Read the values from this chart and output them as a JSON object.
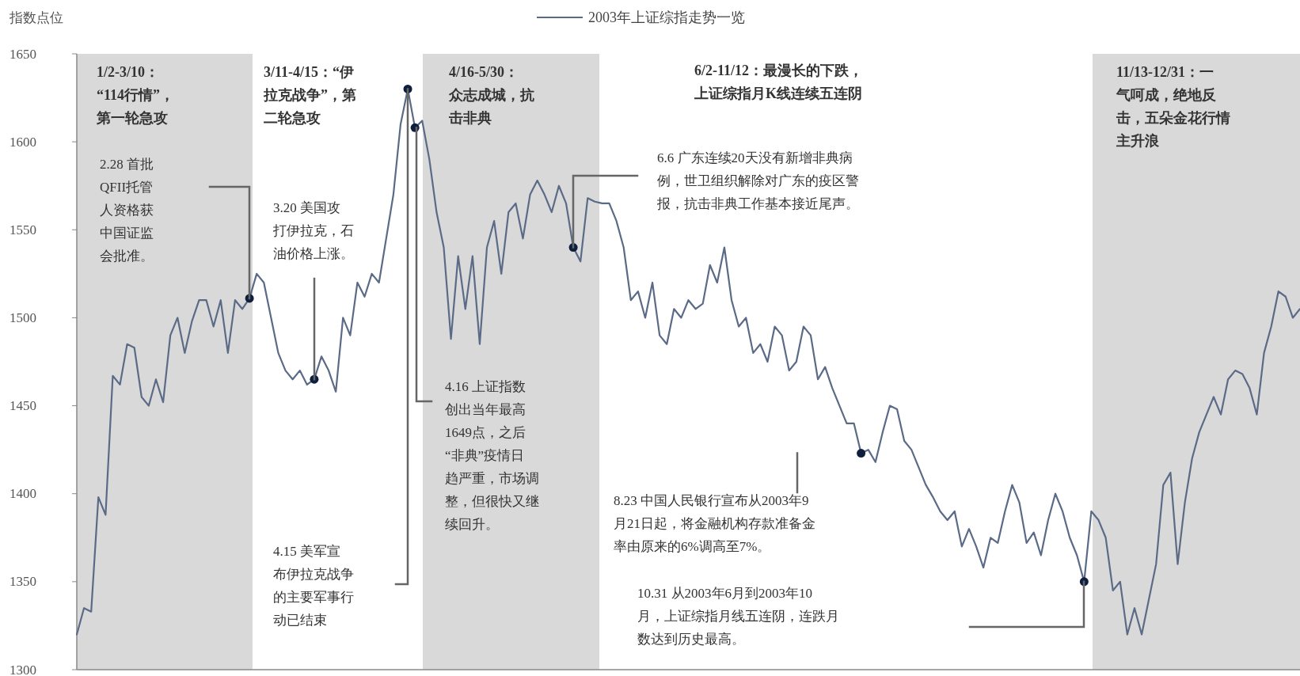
{
  "chart_data": {
    "type": "line",
    "ylabel": "指数点位",
    "legend": "top",
    "tick_labels": "y",
    "grid": false,
    "marker": "none",
    "line_style": "solid",
    "ylim": [
      1300,
      1650
    ],
    "yticks": [
      1300,
      1350,
      1400,
      1450,
      1500,
      1550,
      1600,
      1650
    ],
    "categories": [
      null,
      null,
      null,
      null,
      null,
      null,
      null,
      null,
      null,
      null,
      null,
      null,
      null,
      null,
      null,
      null,
      null,
      null,
      null,
      null,
      null,
      null,
      null,
      null,
      null,
      null,
      null,
      null,
      null,
      null,
      null,
      null,
      null,
      null,
      null,
      null,
      null,
      null,
      null,
      null,
      null,
      null,
      null,
      null,
      null,
      null,
      null,
      null,
      null,
      null,
      null,
      null,
      null,
      null,
      null,
      null,
      null,
      null,
      null,
      null,
      null,
      null,
      null,
      null,
      null,
      null,
      null,
      null,
      null,
      null,
      null,
      null,
      null,
      null,
      null,
      null,
      null,
      null,
      null,
      null,
      null,
      null,
      null,
      null,
      null,
      null,
      null,
      null,
      null,
      null,
      null,
      null,
      null,
      null,
      null,
      null,
      null,
      null,
      null,
      null,
      null,
      null,
      null,
      null,
      null,
      null,
      null,
      null,
      null,
      null,
      null,
      null,
      null,
      null,
      null,
      null,
      null,
      null,
      null,
      null,
      null,
      null,
      null,
      null,
      null,
      null,
      null,
      null,
      null,
      null,
      null,
      null,
      null,
      null,
      null,
      null,
      null,
      null,
      null,
      null,
      null,
      null,
      null,
      null,
      null,
      null,
      null,
      null,
      null,
      null,
      null,
      null,
      null,
      null,
      null,
      null,
      null,
      null,
      null,
      null,
      null,
      null,
      null,
      null,
      null,
      null,
      null,
      null,
      null,
      null,
      null
    ],
    "series": [
      {
        "name": "2003年上证综指走势一览",
        "color": "#5b6b87",
        "values": [
          1320,
          1335,
          1333,
          1398,
          1388,
          1467,
          1462,
          1485,
          1483,
          1455,
          1450,
          1465,
          1452,
          1490,
          1500,
          1480,
          1498,
          1510,
          1510,
          1495,
          1510,
          1480,
          1510,
          1505,
          1511,
          1525,
          1520,
          1500,
          1480,
          1470,
          1465,
          1470,
          1462,
          1465,
          1478,
          1470,
          1458,
          1500,
          1490,
          1520,
          1512,
          1525,
          1520,
          1545,
          1570,
          1610,
          1630,
          1608,
          1612,
          1590,
          1560,
          1540,
          1488,
          1535,
          1505,
          1535,
          1485,
          1540,
          1555,
          1525,
          1560,
          1565,
          1545,
          1570,
          1578,
          1570,
          1560,
          1575,
          1565,
          1540,
          1532,
          1568,
          1566,
          1565,
          1565,
          1555,
          1540,
          1510,
          1515,
          1500,
          1520,
          1490,
          1485,
          1505,
          1500,
          1510,
          1505,
          1508,
          1530,
          1520,
          1540,
          1510,
          1495,
          1500,
          1480,
          1485,
          1475,
          1495,
          1490,
          1470,
          1475,
          1495,
          1490,
          1465,
          1472,
          1460,
          1450,
          1440,
          1440,
          1423,
          1425,
          1418,
          1435,
          1450,
          1448,
          1430,
          1425,
          1415,
          1405,
          1398,
          1390,
          1385,
          1390,
          1370,
          1380,
          1370,
          1358,
          1375,
          1372,
          1390,
          1405,
          1395,
          1372,
          1378,
          1365,
          1385,
          1400,
          1390,
          1375,
          1365,
          1350,
          1390,
          1385,
          1375,
          1345,
          1350,
          1320,
          1335,
          1320,
          1340,
          1360,
          1405,
          1412,
          1360,
          1395,
          1420,
          1435,
          1445,
          1455,
          1445,
          1465,
          1470,
          1468,
          1460,
          1445,
          1480,
          1495,
          1515,
          1512,
          1500,
          1505
        ]
      },
      {
        "type": "scatter",
        "marker": "circle",
        "color": "#0d1f3c",
        "values": [
          null,
          null,
          null,
          null,
          null,
          null,
          null,
          null,
          null,
          null,
          null,
          null,
          null,
          null,
          null,
          null,
          null,
          null,
          null,
          null,
          null,
          null,
          null,
          null,
          1511,
          null,
          null,
          null,
          null,
          null,
          null,
          null,
          null,
          1465,
          null,
          null,
          null,
          null,
          null,
          null,
          null,
          null,
          null,
          null,
          null,
          null,
          1630,
          1608,
          null,
          null,
          null,
          null,
          null,
          null,
          null,
          null,
          null,
          null,
          null,
          null,
          null,
          null,
          null,
          null,
          null,
          null,
          null,
          null,
          null,
          1540,
          null,
          null,
          null,
          null,
          null,
          null,
          null,
          null,
          null,
          null,
          null,
          null,
          null,
          null,
          null,
          null,
          null,
          null,
          null,
          null,
          null,
          null,
          null,
          null,
          null,
          null,
          null,
          null,
          null,
          null,
          null,
          null,
          null,
          null,
          null,
          null,
          null,
          null,
          null,
          1423,
          null,
          null,
          null,
          null,
          null,
          null,
          null,
          null,
          null,
          null,
          null,
          null,
          null,
          null,
          null,
          null,
          null,
          null,
          null,
          null,
          null,
          null,
          null,
          null,
          null,
          null,
          null,
          null,
          null,
          null,
          1350,
          null,
          null,
          null,
          null,
          null,
          null,
          null,
          null,
          null,
          null,
          null,
          null,
          null,
          null,
          null,
          null,
          null,
          null,
          null,
          null,
          null,
          null,
          null,
          null,
          null,
          null,
          null,
          null,
          null,
          null
        ]
      }
    ],
    "annotations": [
      "2.28 首批QFII托管人资格获中国证监会批准。",
      "3.20 美国攻打伊拉克，石油价格上涨。",
      "4.15 美军宣布伊拉克战争的主要军事行动已结束",
      "4.16 上证指数创出当年最高1649点，之后“非典”疫情日趋严重，市场调整，但很快又继续回升。",
      "6.6 广东连续20天没有新增非典病例，世卫组织解除对广东的疫区警报，抗击非典工作基本接近尾声。",
      "8.23 中国人民银行宣布从2003年9月21日起，将金融机构存款准备金率由原来的6%调高至7%。",
      "10.31 从2003年6月到2003年10月，上证综指月线五连阴，连跌月数达到历史最高。",
      "3/11-4/15：“伊拉克战争”，第二轮急攻",
      "6/2-11/12：最漫长的下跌，上证综指月K线连续五连阴",
      "1/2-3/10：“114行情”，第一轮急攻",
      "4/16-5/30：众志成城，抗击非典",
      "11/13-12/31：一气呵成，绝地反击，五朵金花行情主升浪"
    ]
  }
}
